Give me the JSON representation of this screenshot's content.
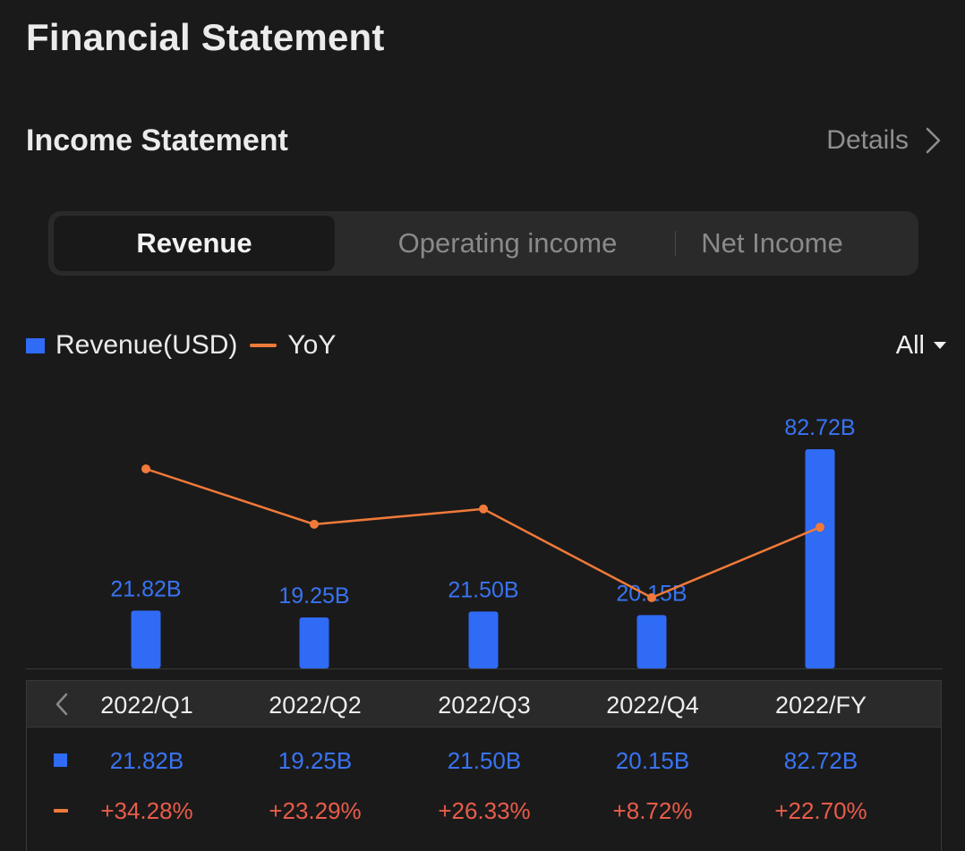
{
  "page": {
    "title": "Financial Statement"
  },
  "section": {
    "title": "Income Statement",
    "details_label": "Details"
  },
  "tabs": [
    {
      "label": "Revenue",
      "active": true
    },
    {
      "label": "Operating income",
      "active": false
    },
    {
      "label": "Net Income",
      "active": false
    }
  ],
  "legend": {
    "bar_label": "Revenue(USD)",
    "line_label": "YoY"
  },
  "range_selector": {
    "value": "All"
  },
  "colors": {
    "bar": "#2f6bf5",
    "line": "#f07a3a",
    "positive_change": "#e85c4a",
    "background": "#1b1a1a"
  },
  "chart_data": {
    "type": "bar",
    "categories": [
      "2022/Q1",
      "2022/Q2",
      "2022/Q3",
      "2022/Q4",
      "2022/FY"
    ],
    "series": [
      {
        "name": "Revenue(USD)",
        "type": "bar",
        "values": [
          21.82,
          19.25,
          21.5,
          20.15,
          82.72
        ],
        "labels": [
          "21.82B",
          "19.25B",
          "21.50B",
          "20.15B",
          "82.72B"
        ],
        "unit": "B USD"
      },
      {
        "name": "YoY",
        "type": "line",
        "values": [
          34.28,
          23.29,
          26.33,
          8.72,
          22.7
        ],
        "labels": [
          "+34.28%",
          "+23.29%",
          "+26.33%",
          "+8.72%",
          "+22.70%"
        ],
        "unit": "%"
      }
    ],
    "legend_position": "top-left",
    "grid": false
  }
}
